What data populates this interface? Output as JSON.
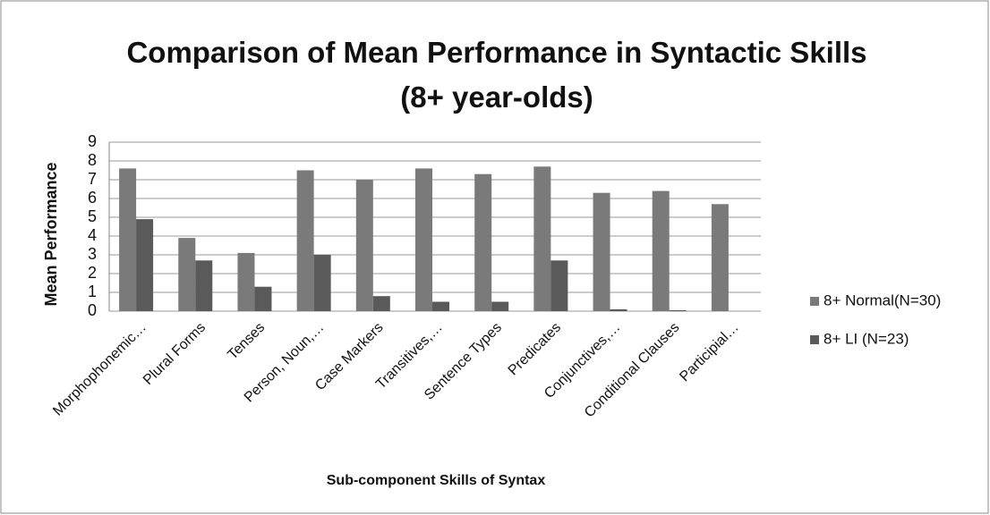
{
  "chart_data": {
    "type": "bar",
    "title": "Comparison of Mean Performance in Syntactic Skills (8+ year-olds)",
    "x_label": "Sub-component Skills of Syntax",
    "y_label": "Mean Performance",
    "categories": [
      "Morphophonemic…",
      "Plural Forms",
      "Tenses",
      "Person, Noun,…",
      "Case Markers",
      "Transitives,…",
      "Sentence Types",
      "Predicates",
      "Conjunctives,…",
      "Conditional Clauses",
      "Participial…"
    ],
    "series": [
      {
        "name": "8+ Normal(N=30)",
        "color": "#7a7a7a",
        "values": [
          7.6,
          3.9,
          3.1,
          7.5,
          7.0,
          7.6,
          7.3,
          7.7,
          6.3,
          6.4,
          5.7
        ]
      },
      {
        "name": "8+ LI (N=23)",
        "color": "#5a5a5a",
        "values": [
          4.9,
          2.7,
          1.3,
          3.0,
          0.8,
          0.5,
          0.5,
          2.7,
          0.1,
          0.05,
          0
        ]
      }
    ],
    "ylim": [
      0,
      9
    ],
    "yticks": [
      0,
      1,
      2,
      3,
      4,
      5,
      6,
      7,
      8,
      9
    ],
    "grid": true,
    "legend": "right"
  }
}
